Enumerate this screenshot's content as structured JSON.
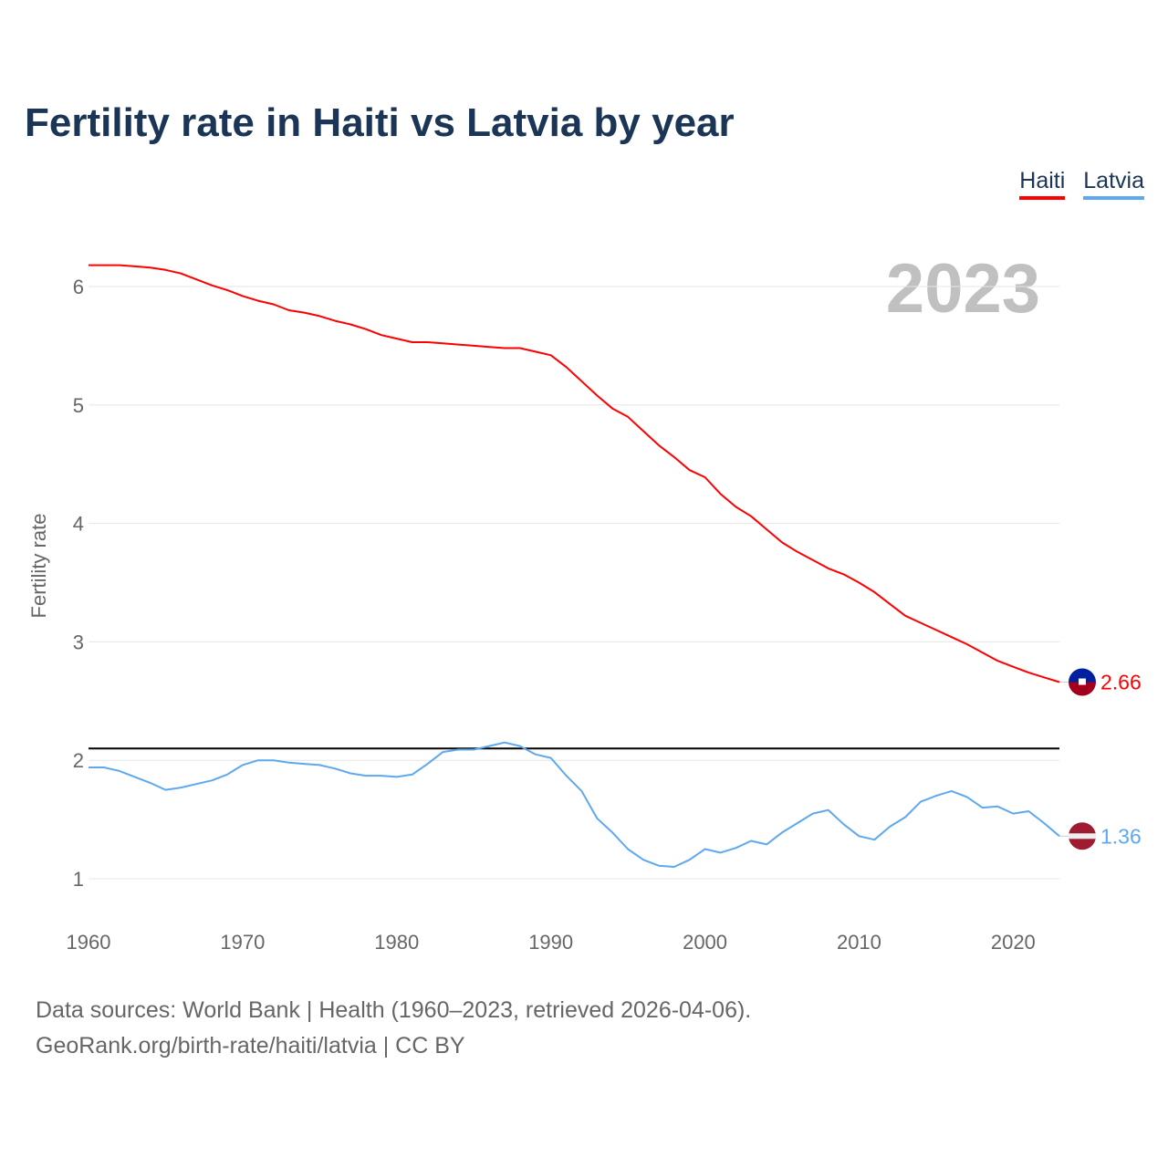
{
  "chart_data": {
    "type": "line",
    "title": "Fertility rate in Haiti vs Latvia by year",
    "xlabel": "",
    "ylabel": "Fertility rate",
    "xlim": [
      1960,
      2023
    ],
    "ylim": [
      0.6,
      6.6
    ],
    "yticks": [
      1,
      2,
      3,
      4,
      5,
      6
    ],
    "xticks": [
      1960,
      1970,
      1980,
      1990,
      2000,
      2010,
      2020
    ],
    "grid": true,
    "legend_position": "top-right",
    "year_label": "2023",
    "reference_line": 2.1,
    "x": [
      1960,
      1961,
      1962,
      1963,
      1964,
      1965,
      1966,
      1967,
      1968,
      1969,
      1970,
      1971,
      1972,
      1973,
      1974,
      1975,
      1976,
      1977,
      1978,
      1979,
      1980,
      1981,
      1982,
      1983,
      1984,
      1985,
      1986,
      1987,
      1988,
      1989,
      1990,
      1991,
      1992,
      1993,
      1994,
      1995,
      1996,
      1997,
      1998,
      1999,
      2000,
      2001,
      2002,
      2003,
      2004,
      2005,
      2006,
      2007,
      2008,
      2009,
      2010,
      2011,
      2012,
      2013,
      2014,
      2015,
      2016,
      2017,
      2018,
      2019,
      2020,
      2021,
      2022,
      2023
    ],
    "series": [
      {
        "name": "Haiti",
        "color": "#ff0000",
        "end_label": "2.66",
        "values": [
          6.18,
          6.18,
          6.18,
          6.17,
          6.16,
          6.14,
          6.11,
          6.06,
          6.01,
          5.97,
          5.92,
          5.88,
          5.85,
          5.8,
          5.78,
          5.75,
          5.71,
          5.68,
          5.64,
          5.59,
          5.56,
          5.53,
          5.53,
          5.52,
          5.51,
          5.5,
          5.49,
          5.48,
          5.48,
          5.45,
          5.42,
          5.32,
          5.2,
          5.08,
          4.97,
          4.9,
          4.78,
          4.66,
          4.56,
          4.45,
          4.39,
          4.25,
          4.14,
          4.06,
          3.95,
          3.84,
          3.76,
          3.69,
          3.62,
          3.57,
          3.5,
          3.42,
          3.32,
          3.22,
          3.16,
          3.1,
          3.04,
          2.98,
          2.91,
          2.84,
          2.79,
          2.74,
          2.7,
          2.66
        ]
      },
      {
        "name": "Latvia",
        "color": "#5ea8f0",
        "end_label": "1.36",
        "values": [
          1.94,
          1.94,
          1.91,
          1.86,
          1.81,
          1.75,
          1.77,
          1.8,
          1.83,
          1.88,
          1.96,
          2.0,
          2.0,
          1.98,
          1.97,
          1.96,
          1.93,
          1.89,
          1.87,
          1.87,
          1.86,
          1.88,
          1.97,
          2.07,
          2.09,
          2.09,
          2.12,
          2.15,
          2.12,
          2.05,
          2.02,
          1.87,
          1.74,
          1.51,
          1.39,
          1.25,
          1.16,
          1.11,
          1.1,
          1.16,
          1.25,
          1.22,
          1.26,
          1.32,
          1.29,
          1.39,
          1.47,
          1.55,
          1.58,
          1.46,
          1.36,
          1.33,
          1.44,
          1.52,
          1.65,
          1.7,
          1.74,
          1.69,
          1.6,
          1.61,
          1.55,
          1.57,
          1.47,
          1.36
        ]
      }
    ]
  },
  "footer": {
    "line1": "Data sources: World Bank | Health (1960–2023, retrieved 2026-04-06).",
    "line2": "GeoRank.org/birth-rate/haiti/latvia | CC BY"
  }
}
